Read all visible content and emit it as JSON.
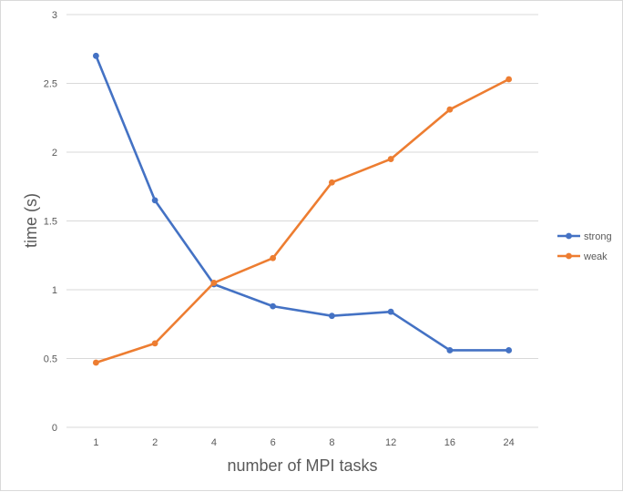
{
  "chart_data": {
    "type": "line",
    "categories": [
      "1",
      "2",
      "4",
      "6",
      "8",
      "12",
      "16",
      "24"
    ],
    "series": [
      {
        "name": "strong",
        "color": "#4472c4",
        "values": [
          2.7,
          1.65,
          1.04,
          0.88,
          0.81,
          0.84,
          0.56,
          0.56
        ]
      },
      {
        "name": "weak",
        "color": "#ed7d31",
        "values": [
          0.47,
          0.61,
          1.05,
          1.23,
          1.78,
          1.95,
          2.31,
          2.53
        ]
      }
    ],
    "xlabel": "number of MPI tasks",
    "ylabel": "time (s)",
    "ylim": [
      0,
      3
    ],
    "yticks": [
      "0",
      "0.5",
      "1",
      "1.5",
      "2",
      "2.5",
      "3"
    ],
    "ytick_values": [
      0,
      0.5,
      1,
      1.5,
      2,
      2.5,
      3
    ],
    "grid": true,
    "legend_position": "right"
  }
}
